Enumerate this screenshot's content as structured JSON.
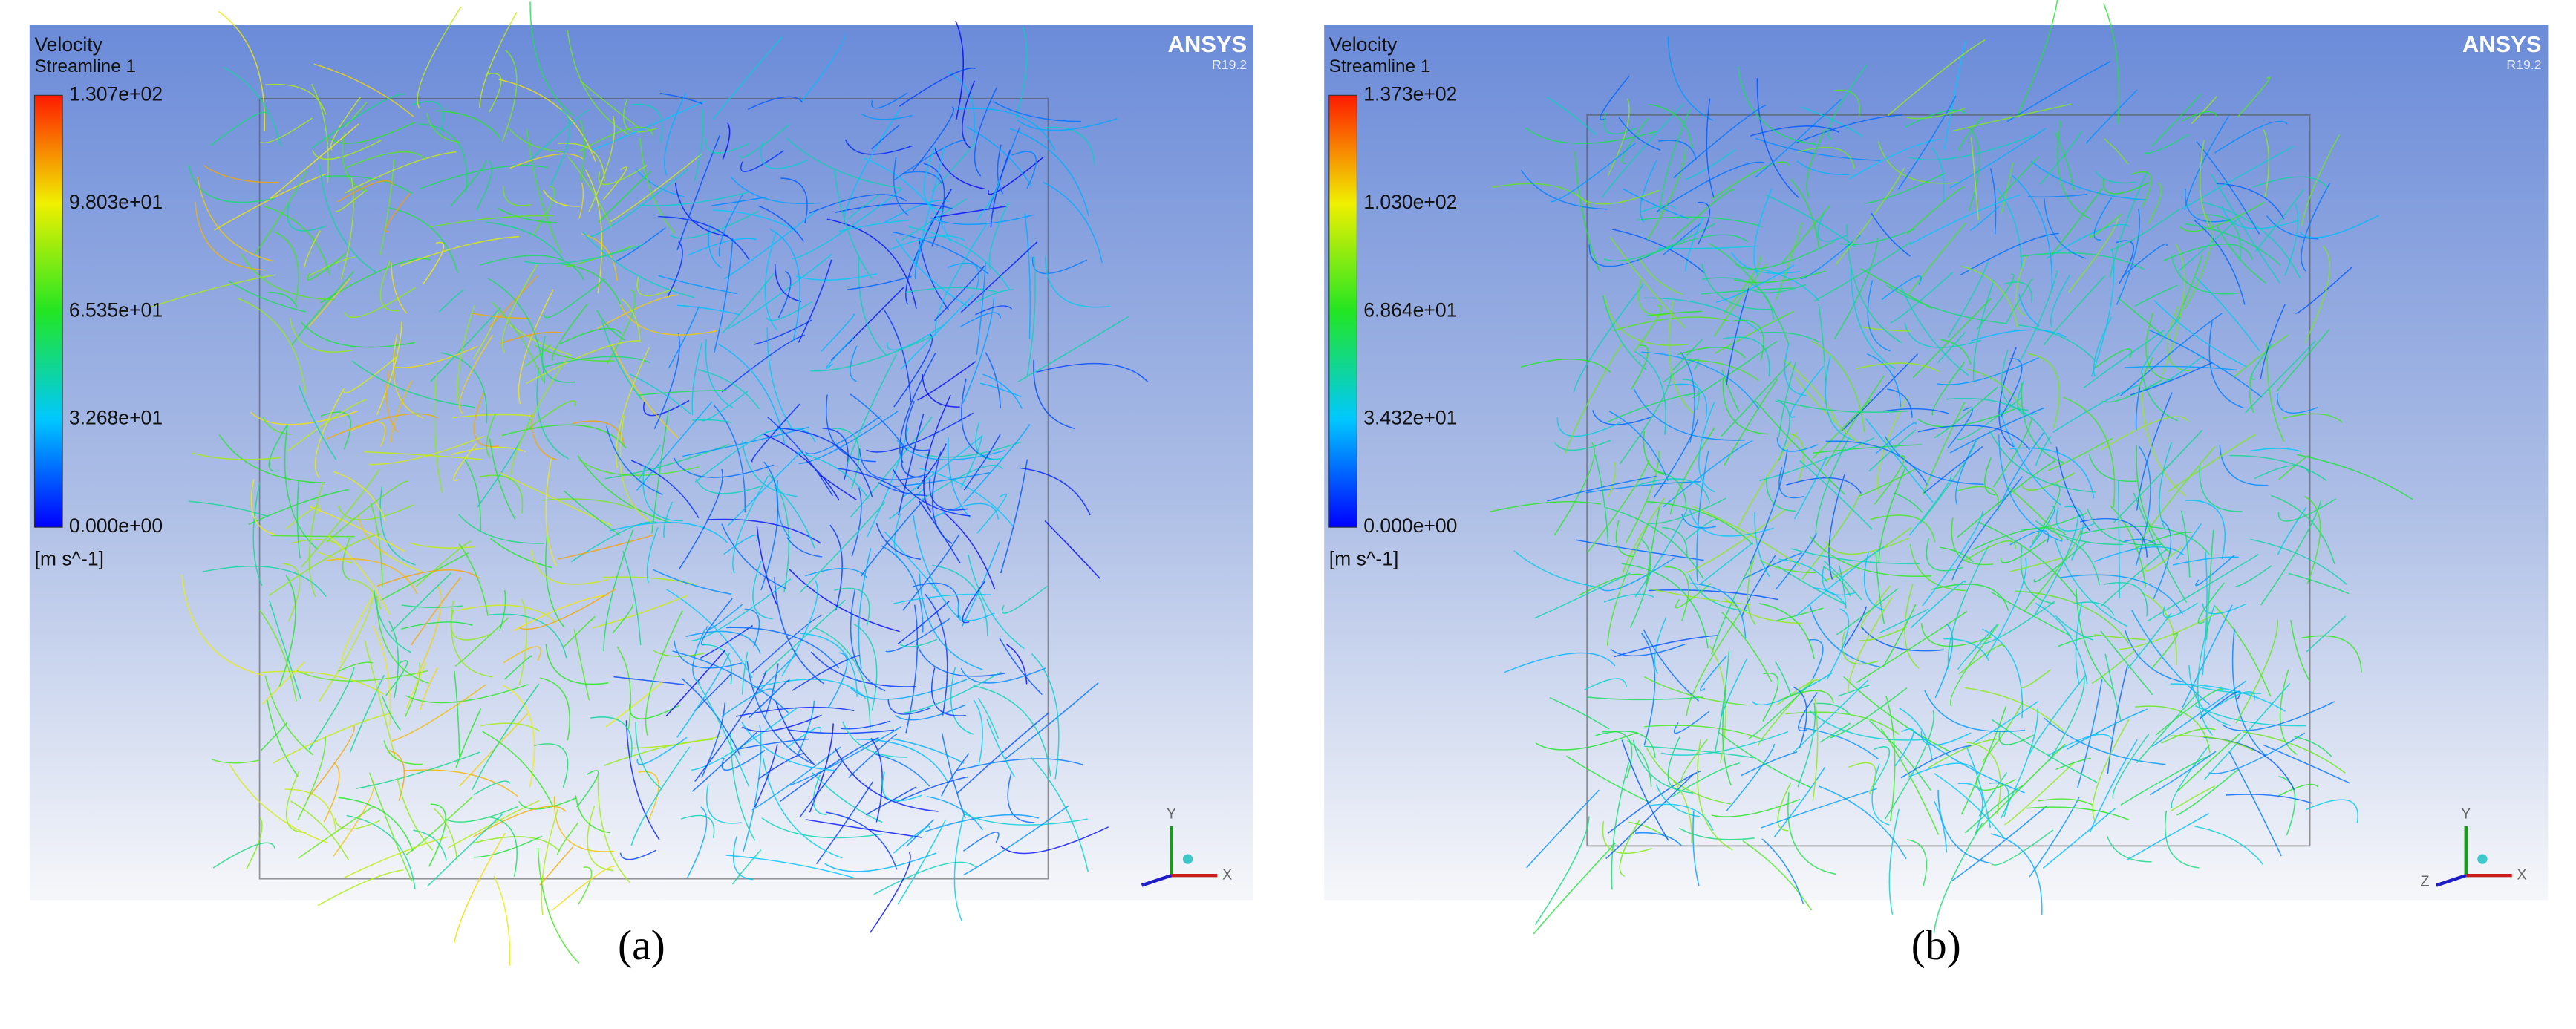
{
  "panels": [
    {
      "title": "Velocity",
      "subtitle": "Streamline 1",
      "legend": {
        "labels": [
          "1.307e+02",
          "9.803e+01",
          "6.535e+01",
          "3.268e+01",
          "0.000e+00"
        ],
        "unit": "[m s^-1]"
      },
      "brand": "ANSYS",
      "version": "R19.2",
      "axes": [
        "Y",
        "X"
      ],
      "caption": "(a)"
    },
    {
      "title": "Velocity",
      "subtitle": "Streamline 1",
      "legend": {
        "labels": [
          "1.373e+02",
          "1.030e+02",
          "6.864e+01",
          "3.432e+01",
          "0.000e+00"
        ],
        "unit": "[m s^-1]"
      },
      "brand": "ANSYS",
      "version": "R19.2",
      "axes": [
        "Y",
        "Z",
        "X"
      ],
      "caption": "(b)"
    }
  ]
}
